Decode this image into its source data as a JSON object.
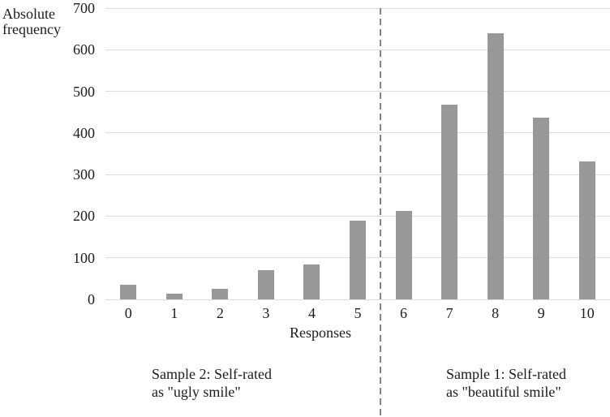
{
  "chart_data": {
    "type": "bar",
    "title": "",
    "y_axis_title": "Absolute\nfrequency",
    "x_axis_title": "Responses",
    "categories": [
      "0",
      "1",
      "2",
      "3",
      "4",
      "5",
      "6",
      "7",
      "8",
      "9",
      "10"
    ],
    "values": [
      36,
      13,
      26,
      70,
      83,
      190,
      212,
      467,
      640,
      437,
      331
    ],
    "ylim": [
      0,
      700
    ],
    "yticks": [
      0,
      100,
      200,
      300,
      400,
      500,
      600,
      700
    ],
    "grid": true,
    "legend": "none",
    "bar_color": "#989898",
    "gridline_color": "#dcdcdc",
    "text_color": "#1c1c1c",
    "separator": {
      "after_category": "5",
      "style": "dashed",
      "color": "#848484"
    },
    "annotations": [
      {
        "text": "Sample 2: Self-rated\nas \"ugly smile\"",
        "side": "left"
      },
      {
        "text": "Sample 1: Self-rated\nas \"beautiful smile\"",
        "side": "right"
      }
    ]
  }
}
